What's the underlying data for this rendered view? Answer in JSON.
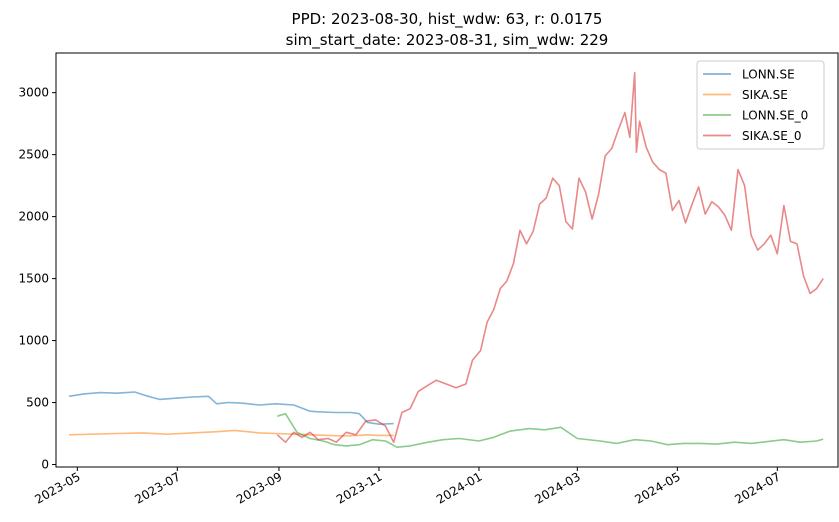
{
  "chart_data": {
    "type": "line",
    "title_lines": [
      "PPD: 2023-08-30, hist_wdw: 63, r: 0.0175",
      "sim_start_date: 2023-08-31, sim_wdw: 229"
    ],
    "xlabel": "",
    "ylabel": "",
    "xlim": [
      "2023-04-18",
      "2024-08-07"
    ],
    "ylim": [
      -20,
      3320
    ],
    "x_ticks": [
      "2023-05",
      "2023-07",
      "2023-09",
      "2023-11",
      "2024-01",
      "2024-03",
      "2024-05",
      "2024-07"
    ],
    "y_ticks": [
      0,
      500,
      1000,
      1500,
      2000,
      2500,
      3000
    ],
    "grid": false,
    "legend_position": "top-right",
    "series": [
      {
        "name": "LONN.SE",
        "color": "#1f77b4",
        "x": [
          "2023-04-26",
          "2023-05-05",
          "2023-05-15",
          "2023-05-25",
          "2023-06-05",
          "2023-06-12",
          "2023-06-20",
          "2023-06-30",
          "2023-07-10",
          "2023-07-20",
          "2023-07-25",
          "2023-08-01",
          "2023-08-10",
          "2023-08-20",
          "2023-08-30",
          "2023-09-10",
          "2023-09-20",
          "2023-09-25",
          "2023-10-05",
          "2023-10-15",
          "2023-10-20",
          "2023-10-25",
          "2023-11-01",
          "2023-11-10"
        ],
        "values": [
          550,
          570,
          580,
          575,
          585,
          555,
          525,
          535,
          545,
          550,
          490,
          500,
          495,
          480,
          490,
          480,
          430,
          425,
          420,
          420,
          410,
          340,
          325,
          330
        ]
      },
      {
        "name": "SIKA.SE",
        "color": "#ff7f0e",
        "x": [
          "2023-04-26",
          "2023-05-10",
          "2023-05-25",
          "2023-06-10",
          "2023-06-25",
          "2023-07-10",
          "2023-07-25",
          "2023-08-05",
          "2023-08-20",
          "2023-08-30",
          "2023-09-10",
          "2023-09-20",
          "2023-10-01",
          "2023-10-10",
          "2023-10-20",
          "2023-10-25",
          "2023-11-01",
          "2023-11-10"
        ],
        "values": [
          240,
          245,
          250,
          255,
          245,
          255,
          265,
          275,
          255,
          250,
          245,
          240,
          235,
          230,
          235,
          240,
          235,
          235
        ]
      },
      {
        "name": "LONN.SE_0",
        "color": "#2ca02c",
        "x": [
          "2023-08-31",
          "2023-09-05",
          "2023-09-12",
          "2023-09-20",
          "2023-09-28",
          "2023-10-05",
          "2023-10-12",
          "2023-10-20",
          "2023-10-28",
          "2023-11-05",
          "2023-11-12",
          "2023-11-20",
          "2023-12-01",
          "2023-12-10",
          "2023-12-20",
          "2024-01-01",
          "2024-01-10",
          "2024-01-20",
          "2024-02-01",
          "2024-02-10",
          "2024-02-20",
          "2024-03-01",
          "2024-03-15",
          "2024-03-25",
          "2024-04-05",
          "2024-04-15",
          "2024-04-25",
          "2024-05-05",
          "2024-05-15",
          "2024-05-25",
          "2024-06-05",
          "2024-06-15",
          "2024-06-25",
          "2024-07-05",
          "2024-07-15",
          "2024-07-25",
          "2024-07-29"
        ],
        "values": [
          390,
          410,
          260,
          210,
          190,
          160,
          150,
          160,
          200,
          190,
          140,
          150,
          180,
          200,
          210,
          190,
          220,
          270,
          290,
          280,
          300,
          210,
          190,
          170,
          200,
          190,
          160,
          170,
          170,
          165,
          180,
          170,
          185,
          200,
          180,
          190,
          205
        ]
      },
      {
        "name": "SIKA.SE_0",
        "color": "#d62728",
        "x": [
          "2023-08-31",
          "2023-09-05",
          "2023-09-10",
          "2023-09-15",
          "2023-09-20",
          "2023-09-25",
          "2023-10-01",
          "2023-10-06",
          "2023-10-12",
          "2023-10-18",
          "2023-10-24",
          "2023-10-30",
          "2023-11-05",
          "2023-11-10",
          "2023-11-15",
          "2023-11-20",
          "2023-11-25",
          "2023-12-01",
          "2023-12-06",
          "2023-12-12",
          "2023-12-18",
          "2023-12-24",
          "2023-12-28",
          "2024-01-02",
          "2024-01-06",
          "2024-01-10",
          "2024-01-14",
          "2024-01-18",
          "2024-01-22",
          "2024-01-26",
          "2024-01-30",
          "2024-02-03",
          "2024-02-07",
          "2024-02-11",
          "2024-02-15",
          "2024-02-19",
          "2024-02-23",
          "2024-02-27",
          "2024-03-02",
          "2024-03-06",
          "2024-03-10",
          "2024-03-14",
          "2024-03-18",
          "2024-03-22",
          "2024-03-26",
          "2024-03-30",
          "2024-04-02",
          "2024-04-05",
          "2024-04-06",
          "2024-04-08",
          "2024-04-12",
          "2024-04-16",
          "2024-04-20",
          "2024-04-24",
          "2024-04-28",
          "2024-05-02",
          "2024-05-06",
          "2024-05-10",
          "2024-05-14",
          "2024-05-18",
          "2024-05-22",
          "2024-05-26",
          "2024-05-30",
          "2024-06-03",
          "2024-06-07",
          "2024-06-11",
          "2024-06-15",
          "2024-06-19",
          "2024-06-23",
          "2024-06-27",
          "2024-07-01",
          "2024-07-05",
          "2024-07-09",
          "2024-07-13",
          "2024-07-17",
          "2024-07-21",
          "2024-07-25",
          "2024-07-29"
        ],
        "values": [
          240,
          180,
          260,
          220,
          260,
          200,
          210,
          180,
          260,
          240,
          350,
          360,
          310,
          180,
          420,
          450,
          590,
          640,
          680,
          650,
          620,
          650,
          840,
          920,
          1150,
          1250,
          1420,
          1480,
          1620,
          1890,
          1780,
          1880,
          2100,
          2150,
          2310,
          2250,
          1960,
          1900,
          2310,
          2200,
          1980,
          2180,
          2490,
          2550,
          2700,
          2840,
          2640,
          3160,
          2520,
          2770,
          2560,
          2440,
          2380,
          2350,
          2050,
          2130,
          1950,
          2100,
          2240,
          2020,
          2120,
          2080,
          2010,
          1890,
          2380,
          2250,
          1850,
          1730,
          1780,
          1850,
          1700,
          2090,
          1800,
          1780,
          1520,
          1380,
          1420,
          1500
        ]
      }
    ]
  }
}
